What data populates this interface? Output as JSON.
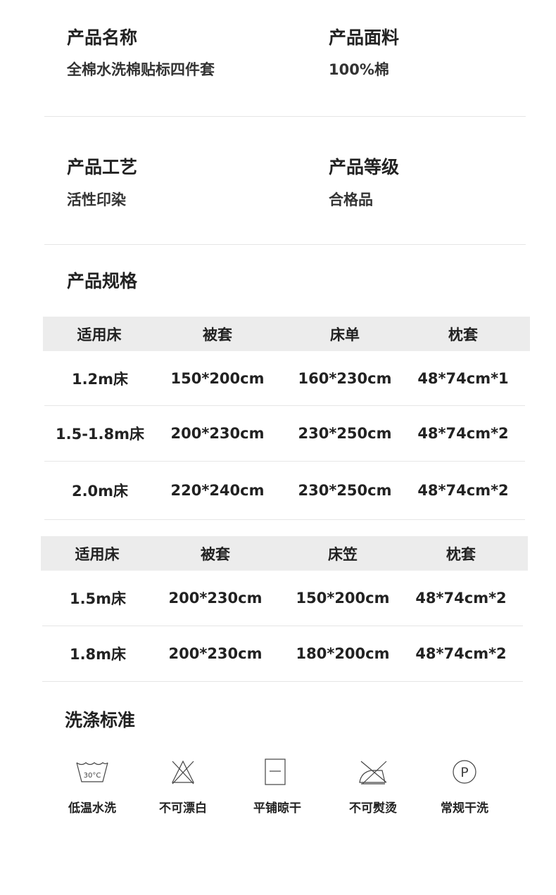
{
  "specs": [
    {
      "label": "产品名称",
      "value": "全棉水洗棉贴标四件套"
    },
    {
      "label": "产品面料",
      "value": "100%棉"
    },
    {
      "label": "产品工艺",
      "value": "活性印染"
    },
    {
      "label": "产品等级",
      "value": "合格品"
    }
  ],
  "size_title": "产品规格",
  "table1": {
    "headers": [
      "适用床",
      "被套",
      "床单",
      "枕套"
    ],
    "rows": [
      [
        "1.2m床",
        "150*200cm",
        "160*230cm",
        "48*74cm*1"
      ],
      [
        "1.5-1.8m床",
        "200*230cm",
        "230*250cm",
        "48*74cm*2"
      ],
      [
        "2.0m床",
        "220*240cm",
        "230*250cm",
        "48*74cm*2"
      ]
    ]
  },
  "table2": {
    "headers": [
      "适用床",
      "被套",
      "床笠",
      "枕套"
    ],
    "rows": [
      [
        "1.5m床",
        "200*230cm",
        "150*200cm",
        "48*74cm*2"
      ],
      [
        "1.8m床",
        "200*230cm",
        "180*200cm",
        "48*74cm*2"
      ]
    ]
  },
  "care_title": "洗涤标准",
  "care": [
    {
      "icon": "wash-30-icon",
      "label": "低温水洗",
      "temp": "30°C"
    },
    {
      "icon": "no-bleach-icon",
      "label": "不可漂白"
    },
    {
      "icon": "dry-flat-icon",
      "label": "平铺晾干"
    },
    {
      "icon": "no-iron-icon",
      "label": "不可熨烫"
    },
    {
      "icon": "dry-clean-p-icon",
      "label": "常规干洗",
      "letter": "P"
    }
  ]
}
